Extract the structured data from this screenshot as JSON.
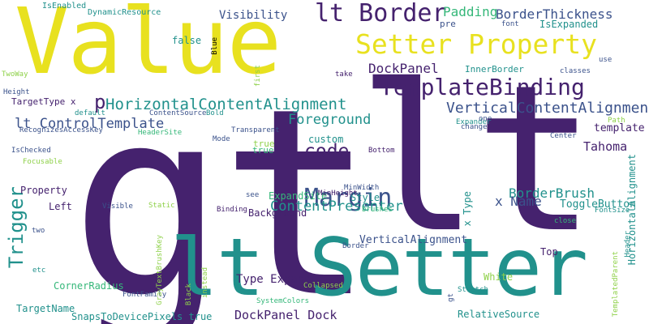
{
  "palette": {
    "yellow": "#e8e11f",
    "purple": "#45226e",
    "teal": "#21918c",
    "green": "#35b779",
    "lime": "#8fd14a",
    "blue": "#3b528b",
    "slate": "#2c6e8e"
  },
  "words": [
    {
      "id": "gt",
      "text": "gt",
      "color": "purple"
    },
    {
      "id": "lt",
      "text": "lt",
      "color": "purple"
    },
    {
      "id": "value",
      "text": "Value",
      "color": "yellow"
    },
    {
      "id": "lt-setter",
      "text": "lt Setter",
      "color": "teal"
    },
    {
      "id": "setter-property",
      "text": "Setter Property",
      "color": "yellow"
    },
    {
      "id": "lt-border",
      "text": "lt Border",
      "color": "purple"
    },
    {
      "id": "template-binding",
      "text": "TemplateBinding",
      "color": "purple"
    },
    {
      "id": "margin",
      "text": "Margin",
      "color": "blue"
    },
    {
      "id": "hca",
      "text": "HorizontalContentAlignment",
      "color": "teal"
    },
    {
      "id": "vca",
      "text": "VerticalContentAlignment",
      "color": "blue"
    },
    {
      "id": "lt-controltemplate",
      "text": "lt ControlTemplate",
      "color": "blue"
    },
    {
      "id": "code",
      "text": "code",
      "color": "purple"
    },
    {
      "id": "foreground",
      "text": "Foreground",
      "color": "teal"
    },
    {
      "id": "trigger",
      "text": "Trigger",
      "color": "teal"
    },
    {
      "id": "border-thickness",
      "text": "BorderThickness",
      "color": "blue"
    },
    {
      "id": "padding",
      "text": "Padding",
      "color": "green"
    },
    {
      "id": "visibility",
      "text": "Visibility",
      "color": "blue"
    },
    {
      "id": "dockpanel",
      "text": "DockPanel",
      "color": "purple"
    },
    {
      "id": "p",
      "text": "p",
      "color": "purple"
    },
    {
      "id": "content-presenter",
      "text": "ContentPresenter",
      "color": "teal"
    },
    {
      "id": "borderbrush",
      "text": "BorderBrush",
      "color": "teal"
    },
    {
      "id": "x-name",
      "text": "x Name",
      "color": "blue"
    },
    {
      "id": "tahoma",
      "text": "Tahoma",
      "color": "purple"
    },
    {
      "id": "dockpanel-dock",
      "text": "DockPanel Dock",
      "color": "purple"
    },
    {
      "id": "type-expander",
      "text": "Type Expander",
      "color": "purple"
    },
    {
      "id": "verticalalignment",
      "text": "VerticalAlignment",
      "color": "blue"
    },
    {
      "id": "corner-radius",
      "text": "CornerRadius",
      "color": "green"
    },
    {
      "id": "targetname",
      "text": "TargetName",
      "color": "teal"
    },
    {
      "id": "snaps",
      "text": "SnapsToDevicePixels true",
      "color": "teal"
    },
    {
      "id": "relative-source",
      "text": "RelativeSource",
      "color": "teal"
    },
    {
      "id": "template",
      "text": "template",
      "color": "purple"
    },
    {
      "id": "togglebutton",
      "text": "ToggleButton",
      "color": "teal"
    },
    {
      "id": "style",
      "text": "Style",
      "color": "teal"
    },
    {
      "id": "background",
      "text": "Background",
      "color": "purple"
    },
    {
      "id": "expand-site",
      "text": "ExpandSite",
      "color": "green"
    },
    {
      "id": "custom",
      "text": "custom",
      "color": "teal"
    },
    {
      "id": "true-1",
      "text": "true",
      "color": "lime"
    },
    {
      "id": "property",
      "text": "Property",
      "color": "purple"
    },
    {
      "id": "left",
      "text": "Left",
      "color": "purple"
    },
    {
      "id": "targettype",
      "text": "TargetType x",
      "color": "purple"
    },
    {
      "id": "isexpanded",
      "text": "IsExpanded",
      "color": "teal"
    },
    {
      "id": "false",
      "text": "false",
      "color": "teal"
    },
    {
      "id": "pre",
      "text": "pre",
      "color": "blue"
    },
    {
      "id": "innerborder",
      "text": "InnerBorder",
      "color": "teal"
    },
    {
      "id": "dynamic-resource",
      "text": "DynamicResource",
      "color": "teal"
    },
    {
      "id": "isenabled",
      "text": "IsEnabled",
      "color": "teal"
    },
    {
      "id": "x-type",
      "text": "x Type",
      "color": "teal"
    },
    {
      "id": "white",
      "text": "White",
      "color": "lime"
    },
    {
      "id": "top",
      "text": "Top",
      "color": "purple"
    },
    {
      "id": "hz-alignment",
      "text": "HorizontalAlignment",
      "color": "teal"
    },
    {
      "id": "font",
      "text": "font",
      "color": "blue"
    },
    {
      "id": "blue-w",
      "text": "Blue",
      "color": "teal"
    },
    {
      "id": "first",
      "text": "first",
      "color": "lime"
    },
    {
      "id": "use",
      "text": "use",
      "color": "blue"
    },
    {
      "id": "classes",
      "text": "classes",
      "color": "blue"
    },
    {
      "id": "bold",
      "text": "Bold",
      "color": "teal"
    },
    {
      "id": "content-source",
      "text": "ContentSource",
      "color": "blue"
    },
    {
      "id": "default",
      "text": "default",
      "color": "teal"
    },
    {
      "id": "height",
      "text": "Height",
      "color": "blue"
    },
    {
      "id": "twoway",
      "text": "TwoWay",
      "color": "lime"
    },
    {
      "id": "header-site",
      "text": "HeaderSite",
      "color": "green"
    },
    {
      "id": "recognizes",
      "text": "RecognizesAccessKey",
      "color": "blue"
    },
    {
      "id": "ischecked",
      "text": "IsChecked",
      "color": "blue"
    },
    {
      "id": "focusable",
      "text": "Focusable",
      "color": "lime"
    },
    {
      "id": "transparent",
      "text": "Transparent",
      "color": "blue"
    },
    {
      "id": "mode",
      "text": "Mode",
      "color": "blue"
    },
    {
      "id": "true-2",
      "text": "true",
      "color": "green"
    },
    {
      "id": "bottom",
      "text": "Bottom",
      "color": "purple"
    },
    {
      "id": "minwidth",
      "text": "MinWidth",
      "color": "blue"
    },
    {
      "id": "minheight",
      "text": "MinHeight",
      "color": "purple"
    },
    {
      "id": "brushes",
      "text": "brushes",
      "color": "green"
    },
    {
      "id": "see",
      "text": "see",
      "color": "blue"
    },
    {
      "id": "take",
      "text": "take",
      "color": "purple"
    },
    {
      "id": "expander",
      "text": "Expander",
      "color": "teal"
    },
    {
      "id": "change",
      "text": "change",
      "color": "blue"
    },
    {
      "id": "one",
      "text": "one",
      "color": "blue"
    },
    {
      "id": "path",
      "text": "Path",
      "color": "lime"
    },
    {
      "id": "center",
      "text": "Center",
      "color": "blue"
    },
    {
      "id": "fontsize",
      "text": "FontSize",
      "color": "teal"
    },
    {
      "id": "close",
      "text": "close",
      "color": "green"
    },
    {
      "id": "visible",
      "text": "Visible",
      "color": "blue"
    },
    {
      "id": "static",
      "text": "Static",
      "color": "lime"
    },
    {
      "id": "binding",
      "text": "Binding",
      "color": "purple"
    },
    {
      "id": "two",
      "text": "two",
      "color": "blue"
    },
    {
      "id": "etc",
      "text": "etc",
      "color": "teal"
    },
    {
      "id": "fontfamily",
      "text": "FontFamily",
      "color": "blue"
    },
    {
      "id": "black",
      "text": "Black",
      "color": "lime"
    },
    {
      "id": "instead",
      "text": "instead",
      "color": "lime"
    },
    {
      "id": "graytext",
      "text": "GrayTextBrushKey",
      "color": "lime"
    },
    {
      "id": "border-small",
      "text": "Border",
      "color": "blue"
    },
    {
      "id": "collapsed",
      "text": "Collapsed",
      "color": "lime"
    },
    {
      "id": "systemcolors",
      "text": "SystemColors",
      "color": "green"
    },
    {
      "id": "stretch",
      "text": "Stretch",
      "color": "teal"
    },
    {
      "id": "gt-small",
      "text": "gt",
      "color": "blue"
    },
    {
      "id": "templatedparent",
      "text": "TemplatedParent",
      "color": "lime"
    },
    {
      "id": "header",
      "text": "Header",
      "color": "teal"
    }
  ]
}
